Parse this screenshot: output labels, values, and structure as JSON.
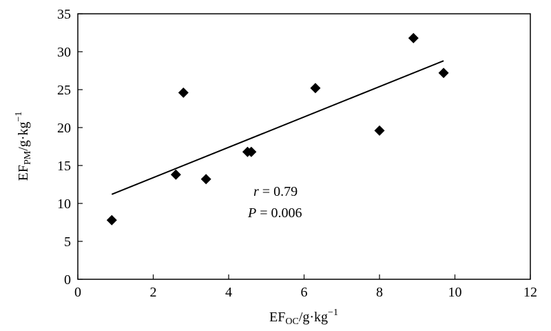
{
  "chart_data": {
    "type": "scatter",
    "title": "",
    "xlabel": {
      "base": "EF",
      "sub": "OC",
      "unit": "/g·kg",
      "sup": "−1"
    },
    "ylabel": {
      "base": "EF",
      "sub": "PM",
      "unit": "/g·kg",
      "sup": "−1"
    },
    "xlim": [
      0,
      12
    ],
    "ylim": [
      0,
      35
    ],
    "xticks": [
      0,
      2,
      4,
      6,
      8,
      10,
      12
    ],
    "yticks": [
      0,
      5,
      10,
      15,
      20,
      25,
      30,
      35
    ],
    "grid": false,
    "legend": "none",
    "marker": "diamond",
    "marker_color": "#000000",
    "points": [
      {
        "x": 0.9,
        "y": 7.8
      },
      {
        "x": 2.6,
        "y": 13.8
      },
      {
        "x": 2.8,
        "y": 24.6
      },
      {
        "x": 3.4,
        "y": 13.2
      },
      {
        "x": 4.5,
        "y": 16.8
      },
      {
        "x": 4.6,
        "y": 16.8
      },
      {
        "x": 6.3,
        "y": 25.2
      },
      {
        "x": 8.0,
        "y": 19.6
      },
      {
        "x": 8.9,
        "y": 31.8
      },
      {
        "x": 9.7,
        "y": 27.2
      }
    ],
    "trendline": {
      "x": [
        0.9,
        9.7
      ],
      "y": [
        11.2,
        28.8
      ]
    },
    "annotations": {
      "r": {
        "symbol": "r",
        "text": " = 0.79"
      },
      "p": {
        "symbol": "P",
        "text": " = 0.006"
      }
    }
  }
}
